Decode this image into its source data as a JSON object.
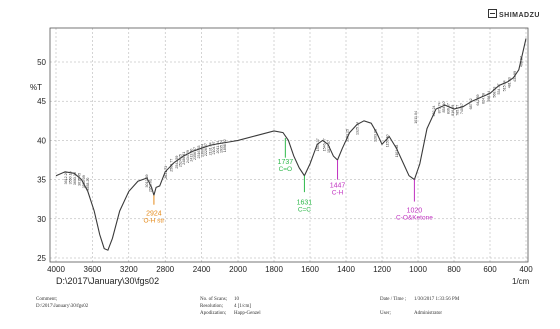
{
  "logo_text": "SHIMADZU",
  "chart_data": {
    "type": "line",
    "ylabel": "%T",
    "xlabel": "1/cm",
    "xlim": [
      4000,
      400
    ],
    "ylim": [
      25,
      53
    ],
    "x_ticks": [
      4000,
      3600,
      3200,
      2800,
      2400,
      2000,
      1800,
      1600,
      1400,
      1200,
      1000,
      800,
      600,
      400
    ],
    "y_ticks": [
      25,
      30,
      35,
      40,
      45,
      50
    ],
    "grid": true,
    "line_color": "#3a3a3a",
    "file_path": "D:\\2017\\January\\30\\fgs02",
    "series": [
      {
        "values": [
          [
            4000,
            35.5
          ],
          [
            3900,
            36.0
          ],
          [
            3800,
            35.8
          ],
          [
            3720,
            35.0
          ],
          [
            3650,
            33.5
          ],
          [
            3580,
            31.0
          ],
          [
            3520,
            28.0
          ],
          [
            3470,
            26.2
          ],
          [
            3430,
            26.0
          ],
          [
            3380,
            27.5
          ],
          [
            3300,
            31.0
          ],
          [
            3200,
            33.5
          ],
          [
            3100,
            34.8
          ],
          [
            3000,
            35.2
          ],
          [
            2950,
            34.0
          ],
          [
            2924,
            33.0
          ],
          [
            2900,
            34.0
          ],
          [
            2860,
            34.2
          ],
          [
            2800,
            36.0
          ],
          [
            2700,
            37.2
          ],
          [
            2600,
            38.0
          ],
          [
            2500,
            38.6
          ],
          [
            2400,
            39.0
          ],
          [
            2300,
            39.4
          ],
          [
            2200,
            39.6
          ],
          [
            2100,
            39.8
          ],
          [
            2000,
            40.0
          ],
          [
            1900,
            40.6
          ],
          [
            1800,
            41.2
          ],
          [
            1750,
            41.0
          ],
          [
            1720,
            40.0
          ],
          [
            1690,
            38.0
          ],
          [
            1660,
            36.5
          ],
          [
            1631,
            35.5
          ],
          [
            1600,
            37.0
          ],
          [
            1560,
            39.5
          ],
          [
            1530,
            40.0
          ],
          [
            1500,
            39.5
          ],
          [
            1470,
            38.0
          ],
          [
            1447,
            37.5
          ],
          [
            1420,
            39.0
          ],
          [
            1380,
            41.0
          ],
          [
            1340,
            42.0
          ],
          [
            1300,
            42.5
          ],
          [
            1260,
            42.2
          ],
          [
            1230,
            41.0
          ],
          [
            1200,
            39.5
          ],
          [
            1160,
            40.5
          ],
          [
            1120,
            39.0
          ],
          [
            1080,
            37.0
          ],
          [
            1050,
            35.5
          ],
          [
            1020,
            35.0
          ],
          [
            990,
            37.0
          ],
          [
            950,
            41.5
          ],
          [
            900,
            44.0
          ],
          [
            850,
            44.5
          ],
          [
            800,
            44.0
          ],
          [
            750,
            44.3
          ],
          [
            700,
            45.0
          ],
          [
            650,
            45.5
          ],
          [
            600,
            46.0
          ],
          [
            550,
            47.0
          ],
          [
            500,
            47.5
          ],
          [
            470,
            48.0
          ],
          [
            440,
            49.0
          ],
          [
            420,
            51.0
          ],
          [
            400,
            53.0
          ]
        ]
      }
    ],
    "peak_labels": [
      {
        "text": "3612.20",
        "x": 3880,
        "y": 35.8
      },
      {
        "text": "3550.16",
        "x": 3830,
        "y": 35.8
      },
      {
        "text": "3603.36",
        "x": 3780,
        "y": 35.7
      },
      {
        "text": "3615.45",
        "x": 3730,
        "y": 35.6
      },
      {
        "text": "3580.09",
        "x": 3680,
        "y": 35.3
      },
      {
        "text": "3558.20",
        "x": 3640,
        "y": 35.0
      },
      {
        "text": "3012.89",
        "x": 2990,
        "y": 35.4
      },
      {
        "text": "2952.61",
        "x": 2950,
        "y": 34.8
      },
      {
        "text": "2631.73",
        "x": 2780,
        "y": 36.5
      },
      {
        "text": "2569.77",
        "x": 2720,
        "y": 37.4
      },
      {
        "text": "2542.59",
        "x": 2660,
        "y": 37.8
      },
      {
        "text": "2524.25",
        "x": 2620,
        "y": 38.0
      },
      {
        "text": "2486.81",
        "x": 2580,
        "y": 38.3
      },
      {
        "text": "2434.29",
        "x": 2540,
        "y": 38.5
      },
      {
        "text": "2413.50",
        "x": 2500,
        "y": 38.7
      },
      {
        "text": "2356.37",
        "x": 2460,
        "y": 38.9
      },
      {
        "text": "2316.83",
        "x": 2420,
        "y": 39.1
      },
      {
        "text": "2300.64",
        "x": 2380,
        "y": 39.3
      },
      {
        "text": "2226.57",
        "x": 2340,
        "y": 39.4
      },
      {
        "text": "2131.04",
        "x": 2290,
        "y": 39.5
      },
      {
        "text": "2104.97",
        "x": 2250,
        "y": 39.6
      },
      {
        "text": "2011.54",
        "x": 2210,
        "y": 39.7
      },
      {
        "text": "1935.24",
        "x": 2170,
        "y": 39.8
      },
      {
        "text": "1898.02",
        "x": 2130,
        "y": 39.9
      },
      {
        "text": "1544.37",
        "x": 1550,
        "y": 40.0
      },
      {
        "text": "1546.47",
        "x": 1515,
        "y": 40.0
      },
      {
        "text": "1527.07",
        "x": 1490,
        "y": 39.8
      },
      {
        "text": "1363.25",
        "x": 1385,
        "y": 41.2
      },
      {
        "text": "1325.14",
        "x": 1330,
        "y": 42.1
      },
      {
        "text": "1203.03",
        "x": 1230,
        "y": 41.2
      },
      {
        "text": "1155.40",
        "x": 1165,
        "y": 40.5
      },
      {
        "text": "1101.38",
        "x": 1110,
        "y": 39.2
      },
      {
        "text": "1011.04",
        "x": 1005,
        "y": 43.5
      },
      {
        "text": "902.24",
        "x": 905,
        "y": 44.2
      },
      {
        "text": "873.74",
        "x": 875,
        "y": 44.6
      },
      {
        "text": "854.40",
        "x": 850,
        "y": 44.7
      },
      {
        "text": "836.67",
        "x": 825,
        "y": 44.5
      },
      {
        "text": "816.09",
        "x": 800,
        "y": 44.3
      },
      {
        "text": "785.77",
        "x": 775,
        "y": 44.3
      },
      {
        "text": "740.17",
        "x": 750,
        "y": 44.5
      },
      {
        "text": "687.42",
        "x": 700,
        "y": 45.1
      },
      {
        "text": "642.89",
        "x": 660,
        "y": 45.6
      },
      {
        "text": "624.78",
        "x": 630,
        "y": 45.8
      },
      {
        "text": "598.34",
        "x": 600,
        "y": 46.1
      },
      {
        "text": "568.53",
        "x": 570,
        "y": 46.6
      },
      {
        "text": "534.37",
        "x": 545,
        "y": 47.0
      },
      {
        "text": "515.04",
        "x": 515,
        "y": 47.4
      },
      {
        "text": "481.63",
        "x": 485,
        "y": 47.8
      },
      {
        "text": "433.99",
        "x": 455,
        "y": 48.6
      },
      {
        "text": "408.87",
        "x": 420,
        "y": 50.5
      }
    ],
    "annotations": [
      {
        "value": "2924",
        "label": "O-H str",
        "x": 2924,
        "y": 30.4,
        "color": "#e58a1a",
        "mark_x": 2924,
        "mark_from": 33.0,
        "mark_to": 31.8
      },
      {
        "value": "1737",
        "label": "C=O",
        "x": 1737,
        "y": 37.0,
        "color": "#2eb84a",
        "mark_x": 1737,
        "mark_from": 40.3,
        "mark_to": 37.8
      },
      {
        "value": "1631",
        "label": "C=C",
        "x": 1631,
        "y": 31.8,
        "color": "#2eb84a",
        "mark_x": 1631,
        "mark_from": 35.5,
        "mark_to": 33.4
      },
      {
        "value": "1447",
        "label": "C-H",
        "x": 1447,
        "y": 34.0,
        "color": "#c030c0",
        "mark_x": 1447,
        "mark_from": 37.5,
        "mark_to": 35.0
      },
      {
        "value": "1020",
        "label": "C-O&Ketone",
        "x": 1020,
        "y": 30.8,
        "color": "#c030c0",
        "mark_x": 1020,
        "mark_from": 35.0,
        "mark_to": 32.2
      }
    ]
  },
  "footer": {
    "comment_label": "Comment;",
    "comment_value": "D:\\2017\\January\\30\\fgs02",
    "scans_label": "No. of Scans;",
    "scans_value": "10",
    "resolution_label": "Resolution;",
    "resolution_value": "4 [1/cm]",
    "apodization_label": "Apodization;",
    "apodization_value": "Happ-Genzel",
    "datetime_label": "Date / Time ;",
    "datetime_value": "1/30/2017 1:33:56 PM",
    "user_label": "User;",
    "user_value": "Administrator"
  }
}
